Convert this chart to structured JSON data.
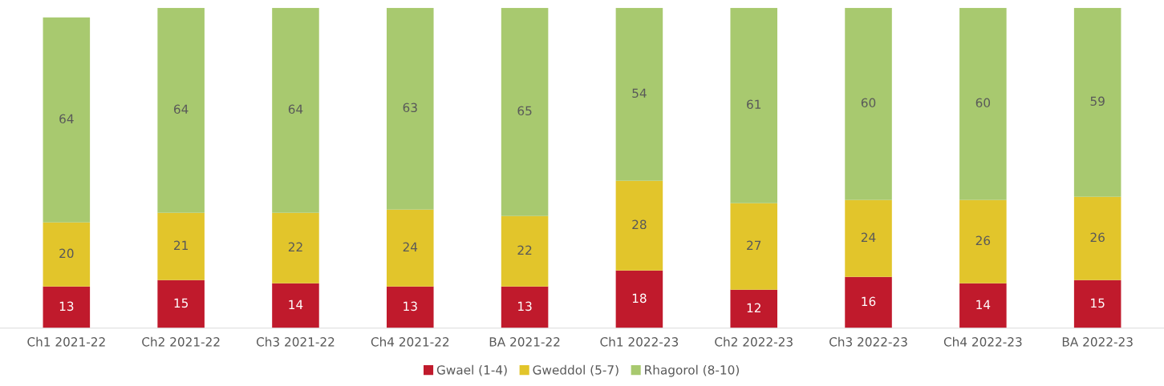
{
  "chart_data": {
    "type": "bar",
    "stacked": true,
    "data_labels": true,
    "legend": "bottom",
    "categories": [
      "Ch1 2021-22",
      "Ch2 2021-22",
      "Ch3 2021-22",
      "Ch4 2021-22",
      "BA 2021-22",
      "Ch1 2022-23",
      "Ch2 2022-23",
      "Ch3 2022-23",
      "Ch4 2022-23",
      "BA 2022-23"
    ],
    "series": [
      {
        "name": "Gwael (1-4)",
        "color": "#c01a2c",
        "values": [
          13,
          15,
          14,
          13,
          13,
          18,
          12,
          16,
          14,
          15
        ]
      },
      {
        "name": "Gweddol (5-7)",
        "color": "#e2c52b",
        "values": [
          20,
          21,
          22,
          24,
          22,
          28,
          27,
          24,
          26,
          26
        ]
      },
      {
        "name": "Rhagorol (8-10)",
        "color": "#a8c96f",
        "values": [
          64,
          64,
          64,
          63,
          65,
          54,
          61,
          60,
          60,
          59
        ]
      }
    ]
  }
}
